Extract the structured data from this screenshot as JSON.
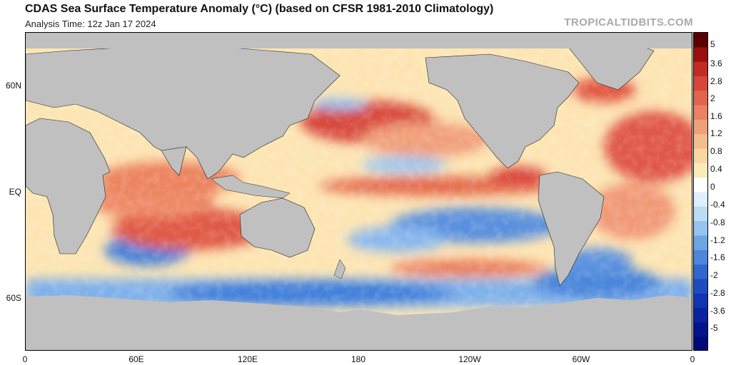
{
  "header": {
    "title": "CDAS Sea Surface Temperature Anomaly (°C) (based on CFSR 1981-2010 Climatology)",
    "subtitle": "Analysis Time: 12z Jan 17 2024",
    "credit": "TROPICALTIDBITS.COM"
  },
  "map": {
    "lat_labels": [
      "60N",
      "EQ",
      "60S"
    ],
    "lon_labels": [
      "0",
      "60E",
      "120E",
      "180",
      "120W",
      "60W",
      "0"
    ],
    "land_color": "#c0c0c0",
    "ocean_neutral_color": "#fff7c8",
    "warm_regions": [
      "North Pacific",
      "Equatorial Pacific",
      "Tropical Atlantic",
      "Indian Ocean",
      "Mediterranean",
      "South Atlantic"
    ],
    "cool_regions": [
      "Southern Ocean",
      "Southeast Pacific",
      "Central North Pacific",
      "South Indian Ocean"
    ]
  },
  "colorbar": {
    "labels": [
      "5",
      "3.6",
      "2.8",
      "2",
      "1.6",
      "1.2",
      "0.8",
      "0.4",
      "0",
      "-0.4",
      "-0.8",
      "-1.2",
      "-1.6",
      "-2",
      "-2.8",
      "-3.6",
      "-5"
    ],
    "colors": [
      "#5a0000",
      "#9a0f0f",
      "#c42a22",
      "#d6463a",
      "#e2644f",
      "#ea8263",
      "#f0a078",
      "#f4bd8d",
      "#f8d7a2",
      "#fbebbb",
      "#ffffff",
      "#dff0fb",
      "#bcdcf5",
      "#96c4ee",
      "#6ea6e4",
      "#4d86da",
      "#3067cc",
      "#1e4bc0",
      "#1134b0",
      "#0a22a0",
      "#04148f",
      "#000a78"
    ]
  }
}
